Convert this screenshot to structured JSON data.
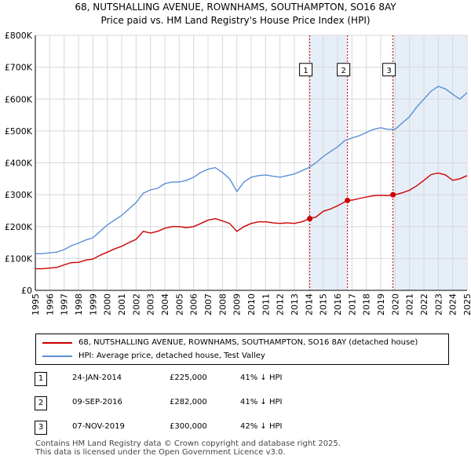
{
  "title_line1": "68, NUTSHALLING AVENUE, ROWNHAMS, SOUTHAMPTON, SO16 8AY",
  "title_line2": "Price paid vs. HM Land Registry's House Price Index (HPI)",
  "colors": {
    "property": "#cc0000",
    "hpi": "#5b8fd6",
    "shade": "#e6eef8",
    "grid": "#d8d8d8"
  },
  "chart_data": {
    "type": "line",
    "xlim": [
      1995,
      2025
    ],
    "ylim": [
      0,
      800000
    ],
    "y_ticks": [
      0,
      100000,
      200000,
      300000,
      400000,
      500000,
      600000,
      700000,
      800000
    ],
    "y_tick_labels": [
      "£0",
      "£100K",
      "£200K",
      "£300K",
      "£400K",
      "£500K",
      "£600K",
      "£700K",
      "£800K"
    ],
    "x_ticks": [
      1995,
      1996,
      1997,
      1998,
      1999,
      2000,
      2001,
      2002,
      2003,
      2004,
      2005,
      2006,
      2007,
      2008,
      2009,
      2010,
      2011,
      2012,
      2013,
      2014,
      2015,
      2016,
      2017,
      2018,
      2019,
      2020,
      2021,
      2022,
      2023,
      2024,
      2025
    ],
    "series": [
      {
        "name": "68, NUTSHALLING AVENUE, ROWNHAMS, SOUTHAMPTON, SO16 8AY (detached house)",
        "color": "#cc0000",
        "x": [
          1995.0,
          1995.5,
          1996.0,
          1996.5,
          1997.0,
          1997.5,
          1998.0,
          1998.5,
          1999.0,
          1999.5,
          2000.0,
          2000.5,
          2001.0,
          2001.5,
          2002.0,
          2002.5,
          2003.0,
          2003.5,
          2004.0,
          2004.5,
          2005.0,
          2005.5,
          2006.0,
          2006.5,
          2007.0,
          2007.5,
          2008.0,
          2008.5,
          2009.0,
          2009.5,
          2010.0,
          2010.5,
          2011.0,
          2011.5,
          2012.0,
          2012.5,
          2013.0,
          2013.5,
          2014.07,
          2014.5,
          2015.0,
          2015.5,
          2016.0,
          2016.69,
          2017.0,
          2017.5,
          2018.0,
          2018.5,
          2019.0,
          2019.5,
          2019.85,
          2020.0,
          2020.5,
          2021.0,
          2021.5,
          2022.0,
          2022.5,
          2023.0,
          2023.5,
          2024.0,
          2024.5,
          2025.0
        ],
        "y": [
          68000,
          68000,
          70000,
          72000,
          80000,
          87000,
          88000,
          95000,
          98000,
          110000,
          120000,
          130000,
          138000,
          150000,
          160000,
          185000,
          180000,
          185000,
          195000,
          200000,
          200000,
          197000,
          200000,
          210000,
          220000,
          225000,
          218000,
          210000,
          185000,
          200000,
          210000,
          215000,
          215000,
          212000,
          210000,
          212000,
          210000,
          215000,
          225000,
          230000,
          248000,
          255000,
          265000,
          282000,
          283000,
          288000,
          293000,
          297000,
          298000,
          297000,
          300000,
          300000,
          306000,
          314000,
          328000,
          345000,
          363000,
          368000,
          362000,
          345000,
          350000,
          360000
        ]
      },
      {
        "name": "HPI: Average price, detached house, Test Valley",
        "color": "#5b8fd6",
        "x": [
          1995.0,
          1995.5,
          1996.0,
          1996.5,
          1997.0,
          1997.5,
          1998.0,
          1998.5,
          1999.0,
          1999.5,
          2000.0,
          2000.5,
          2001.0,
          2001.5,
          2002.0,
          2002.5,
          2003.0,
          2003.5,
          2004.0,
          2004.5,
          2005.0,
          2005.5,
          2006.0,
          2006.5,
          2007.0,
          2007.5,
          2008.0,
          2008.5,
          2009.0,
          2009.5,
          2010.0,
          2010.5,
          2011.0,
          2011.5,
          2012.0,
          2012.5,
          2013.0,
          2013.5,
          2014.0,
          2014.5,
          2015.0,
          2015.5,
          2016.0,
          2016.5,
          2017.0,
          2017.5,
          2018.0,
          2018.5,
          2019.0,
          2019.5,
          2020.0,
          2020.5,
          2021.0,
          2021.5,
          2022.0,
          2022.5,
          2023.0,
          2023.5,
          2024.0,
          2024.5,
          2025.0
        ],
        "y": [
          115000,
          115000,
          118000,
          120000,
          128000,
          140000,
          148000,
          158000,
          165000,
          185000,
          205000,
          220000,
          235000,
          255000,
          275000,
          305000,
          315000,
          320000,
          335000,
          340000,
          340000,
          345000,
          355000,
          370000,
          380000,
          385000,
          370000,
          350000,
          310000,
          340000,
          355000,
          360000,
          362000,
          358000,
          355000,
          360000,
          365000,
          375000,
          385000,
          400000,
          420000,
          435000,
          450000,
          470000,
          478000,
          485000,
          495000,
          505000,
          510000,
          505000,
          505000,
          525000,
          545000,
          575000,
          600000,
          625000,
          640000,
          632000,
          615000,
          600000,
          620000
        ]
      }
    ],
    "transactions": [
      {
        "label": "1",
        "x": 2014.07,
        "y": 225000
      },
      {
        "label": "2",
        "x": 2016.69,
        "y": 282000
      },
      {
        "label": "3",
        "x": 2019.85,
        "y": 300000
      }
    ]
  },
  "legend": {
    "property": "68, NUTSHALLING AVENUE, ROWNHAMS, SOUTHAMPTON, SO16 8AY (detached house)",
    "hpi": "HPI: Average price, detached house, Test Valley"
  },
  "table": [
    {
      "num": "1",
      "date": "24-JAN-2014",
      "price": "£225,000",
      "hpi": "41% ↓ HPI"
    },
    {
      "num": "2",
      "date": "09-SEP-2016",
      "price": "£282,000",
      "hpi": "41% ↓ HPI"
    },
    {
      "num": "3",
      "date": "07-NOV-2019",
      "price": "£300,000",
      "hpi": "42% ↓ HPI"
    }
  ],
  "footer_line1": "Contains HM Land Registry data © Crown copyright and database right 2025.",
  "footer_line2": "This data is licensed under the Open Government Licence v3.0."
}
